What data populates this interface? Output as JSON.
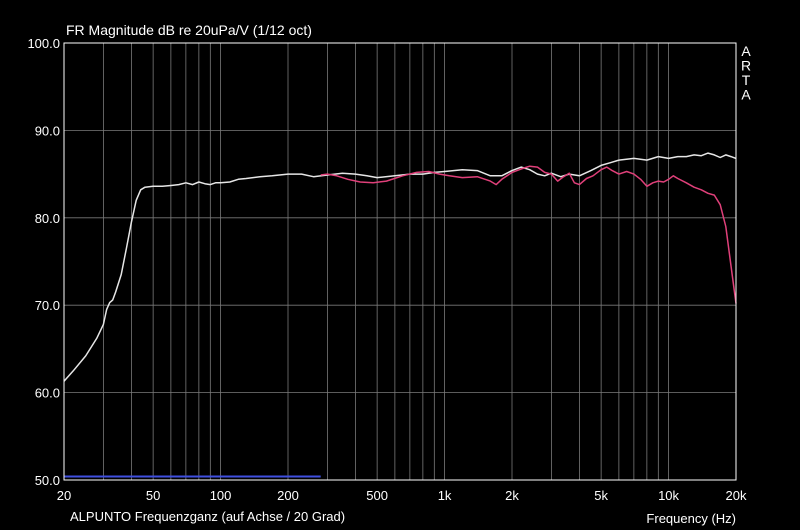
{
  "chart_data": {
    "type": "line",
    "title": "FR Magnitude dB re 20uPa/V (1/12 oct)",
    "brand": [
      "A",
      "R",
      "T",
      "A"
    ],
    "xlabel": "Frequency (Hz)",
    "caption": "ALPUNTO Frequenzganz (auf Achse / 20 Grad)",
    "xscale": "log",
    "xlim": [
      20,
      20000
    ],
    "ylim": [
      50,
      100
    ],
    "x_ticks": [
      {
        "value": 20,
        "label": "20"
      },
      {
        "value": 50,
        "label": "50"
      },
      {
        "value": 100,
        "label": "100"
      },
      {
        "value": 200,
        "label": "200"
      },
      {
        "value": 500,
        "label": "500"
      },
      {
        "value": 1000,
        "label": "1k"
      },
      {
        "value": 2000,
        "label": "2k"
      },
      {
        "value": 5000,
        "label": "5k"
      },
      {
        "value": 10000,
        "label": "10k"
      },
      {
        "value": 20000,
        "label": "20k"
      }
    ],
    "y_ticks": [
      {
        "value": 50,
        "label": "50.0"
      },
      {
        "value": 60,
        "label": "60.0"
      },
      {
        "value": 70,
        "label": "70.0"
      },
      {
        "value": 80,
        "label": "80.0"
      },
      {
        "value": 90,
        "label": "90.0"
      },
      {
        "value": 100,
        "label": "100.0"
      }
    ],
    "grid": true,
    "colors": {
      "background": "#000000",
      "grid": "#7a7a7a",
      "axis": "#ffffff",
      "text": "#ffffff"
    },
    "series": [
      {
        "color": "#e6e6e6",
        "points": [
          [
            20,
            61.3
          ],
          [
            22,
            62.5
          ],
          [
            25,
            64.2
          ],
          [
            28,
            66.2
          ],
          [
            30,
            67.8
          ],
          [
            31,
            69.5
          ],
          [
            32,
            70.3
          ],
          [
            33,
            70.6
          ],
          [
            34,
            71.5
          ],
          [
            36,
            73.5
          ],
          [
            38,
            76.5
          ],
          [
            40,
            79.5
          ],
          [
            42,
            82.0
          ],
          [
            44,
            83.2
          ],
          [
            46,
            83.5
          ],
          [
            50,
            83.6
          ],
          [
            55,
            83.6
          ],
          [
            60,
            83.7
          ],
          [
            65,
            83.8
          ],
          [
            70,
            84.0
          ],
          [
            75,
            83.8
          ],
          [
            80,
            84.1
          ],
          [
            85,
            83.9
          ],
          [
            90,
            83.8
          ],
          [
            95,
            84.0
          ],
          [
            100,
            84.0
          ],
          [
            110,
            84.1
          ],
          [
            120,
            84.4
          ],
          [
            130,
            84.5
          ],
          [
            150,
            84.7
          ],
          [
            170,
            84.8
          ],
          [
            200,
            85.0
          ],
          [
            230,
            85.0
          ],
          [
            260,
            84.7
          ],
          [
            300,
            84.9
          ],
          [
            350,
            85.1
          ],
          [
            400,
            85.0
          ],
          [
            450,
            84.8
          ],
          [
            500,
            84.6
          ],
          [
            600,
            84.8
          ],
          [
            700,
            85.0
          ],
          [
            800,
            85.0
          ],
          [
            900,
            85.2
          ],
          [
            1000,
            85.3
          ],
          [
            1200,
            85.5
          ],
          [
            1400,
            85.4
          ],
          [
            1600,
            84.8
          ],
          [
            1800,
            84.8
          ],
          [
            2000,
            85.4
          ],
          [
            2200,
            85.8
          ],
          [
            2400,
            85.5
          ],
          [
            2600,
            85.0
          ],
          [
            2800,
            84.8
          ],
          [
            3000,
            85.1
          ],
          [
            3300,
            84.7
          ],
          [
            3600,
            85.0
          ],
          [
            4000,
            84.8
          ],
          [
            4500,
            85.4
          ],
          [
            5000,
            86.0
          ],
          [
            5500,
            86.3
          ],
          [
            6000,
            86.6
          ],
          [
            7000,
            86.8
          ],
          [
            8000,
            86.6
          ],
          [
            9000,
            87.0
          ],
          [
            10000,
            86.8
          ],
          [
            11000,
            87.0
          ],
          [
            12000,
            87.0
          ],
          [
            13000,
            87.2
          ],
          [
            14000,
            87.1
          ],
          [
            15000,
            87.4
          ],
          [
            16000,
            87.2
          ],
          [
            17000,
            86.9
          ],
          [
            18000,
            87.2
          ],
          [
            19000,
            87.0
          ],
          [
            20000,
            86.8
          ]
        ]
      },
      {
        "color": "#e0407a",
        "points": [
          [
            280,
            84.9
          ],
          [
            300,
            85.0
          ],
          [
            330,
            84.8
          ],
          [
            370,
            84.4
          ],
          [
            420,
            84.1
          ],
          [
            480,
            84.0
          ],
          [
            550,
            84.2
          ],
          [
            650,
            84.8
          ],
          [
            750,
            85.2
          ],
          [
            850,
            85.3
          ],
          [
            950,
            85.0
          ],
          [
            1050,
            84.8
          ],
          [
            1200,
            84.6
          ],
          [
            1400,
            84.7
          ],
          [
            1600,
            84.2
          ],
          [
            1700,
            83.8
          ],
          [
            1800,
            84.4
          ],
          [
            2000,
            85.2
          ],
          [
            2200,
            85.6
          ],
          [
            2400,
            85.9
          ],
          [
            2600,
            85.8
          ],
          [
            2800,
            85.2
          ],
          [
            3000,
            85.0
          ],
          [
            3200,
            84.2
          ],
          [
            3400,
            84.7
          ],
          [
            3600,
            85.1
          ],
          [
            3800,
            84.0
          ],
          [
            4000,
            83.8
          ],
          [
            4300,
            84.5
          ],
          [
            4600,
            84.8
          ],
          [
            5000,
            85.5
          ],
          [
            5300,
            85.8
          ],
          [
            5600,
            85.4
          ],
          [
            6000,
            85.0
          ],
          [
            6500,
            85.3
          ],
          [
            7000,
            85.0
          ],
          [
            7500,
            84.4
          ],
          [
            8000,
            83.6
          ],
          [
            8500,
            84.0
          ],
          [
            9000,
            84.2
          ],
          [
            9500,
            84.1
          ],
          [
            10000,
            84.4
          ],
          [
            10500,
            84.8
          ],
          [
            11000,
            84.5
          ],
          [
            12000,
            84.0
          ],
          [
            13000,
            83.5
          ],
          [
            14000,
            83.2
          ],
          [
            15000,
            82.8
          ],
          [
            16000,
            82.6
          ],
          [
            17000,
            81.5
          ],
          [
            18000,
            79.0
          ],
          [
            19000,
            74.5
          ],
          [
            20000,
            70.2
          ]
        ]
      },
      {
        "color": "#3f4fe0",
        "points": [
          [
            20,
            50.4
          ],
          [
            280,
            50.4
          ]
        ]
      }
    ]
  }
}
